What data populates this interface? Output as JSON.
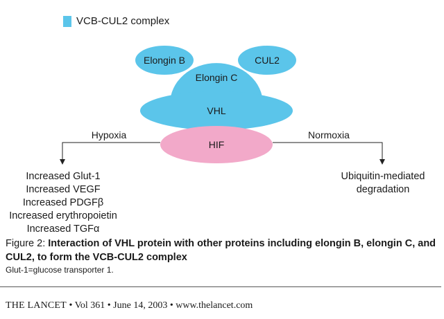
{
  "legend": {
    "label": "VCB-CUL2 complex",
    "color": "#5bc5ea"
  },
  "colors": {
    "complex": "#5bc5ea",
    "hif": "#f2a9c9",
    "line": "#222222"
  },
  "nodes": {
    "elongin_b": "Elongin B",
    "cul2": "CUL2",
    "elongin_c": "Elongin C",
    "vhl": "VHL",
    "hif": "HIF"
  },
  "branches": {
    "hypoxia": "Hypoxia",
    "normoxia": "Normoxia"
  },
  "hypoxia_outcomes": [
    "Increased Glut-1",
    "Increased VEGF",
    "Increased PDGFβ",
    "Increased erythropoietin",
    "Increased TGFα"
  ],
  "normoxia_outcomes": [
    "Ubiquitin-mediated",
    "degradation"
  ],
  "caption": {
    "prefix": "Figure 2: ",
    "title": "Interaction of VHL protein with other proteins including elongin B, elongin C, and CUL2, to form the VCB-CUL2 complex",
    "footnote": "Glut-1=glucose transporter 1."
  },
  "footer": {
    "journal": "THE LANCET",
    "details": " • Vol 361 • June 14, 2003 • www.thelancet.com"
  }
}
